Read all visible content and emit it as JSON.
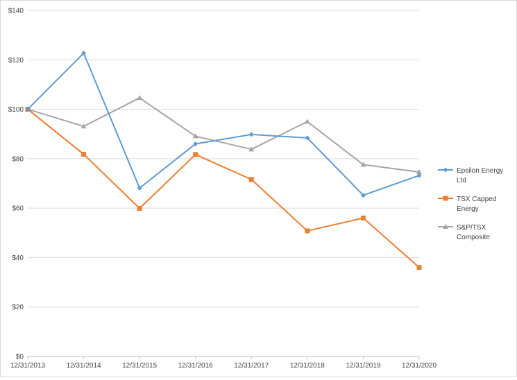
{
  "chart_data": {
    "type": "line",
    "title": "",
    "xlabel": "",
    "ylabel": "",
    "categories": [
      "12/31/2013",
      "12/31/2014",
      "12/31/2015",
      "12/31/2016",
      "12/31/2017",
      "12/31/2018",
      "12/31/2019",
      "12/31/2020"
    ],
    "ylim": [
      0,
      140
    ],
    "yticks": [
      0,
      20,
      40,
      60,
      80,
      100,
      120,
      140
    ],
    "ytick_labels": [
      "$0",
      "$20",
      "$40",
      "$60",
      "$80",
      "$100",
      "$120",
      "$140"
    ],
    "grid": true,
    "legend_position": "right",
    "series": [
      {
        "name": "Epsilon Energy Ltd",
        "legend_lines": [
          "Epsilon Energy",
          "Ltd"
        ],
        "color": "#5b9bd5",
        "marker": "diamond",
        "values": [
          100,
          122.7,
          68.1,
          86,
          89.8,
          88.4,
          65.2,
          73.2
        ]
      },
      {
        "name": "TSX Capped Energy",
        "legend_lines": [
          "TSX Capped",
          "Energy"
        ],
        "color": "#ed7d31",
        "marker": "square",
        "values": [
          100,
          81.8,
          59.9,
          81.7,
          71.6,
          50.8,
          56,
          36
        ]
      },
      {
        "name": "S&P/TSX Composite",
        "legend_lines": [
          "S&P/TSX",
          "Composite"
        ],
        "color": "#a5a5a5",
        "marker": "triangle",
        "values": [
          100,
          93.1,
          104.6,
          89.1,
          83.8,
          95,
          77.6,
          74.6
        ]
      }
    ]
  }
}
